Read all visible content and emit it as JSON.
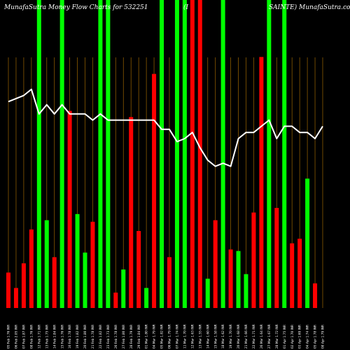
{
  "header": {
    "left": "MunafaSutra  Money Flow  Charts for 532251",
    "mid": "(I",
    "right": "SAINTE) MunafaSutra.com"
  },
  "chart_data": {
    "type": "bar",
    "ylim": [
      0,
      100
    ],
    "grid": true,
    "colors": {
      "green": "#00ff00",
      "red": "#ff0000",
      "line": "#ffffff",
      "grid": "#8b5a00",
      "background": "#000000"
    },
    "categories": [
      "05 Feb 1.76 INR",
      "06 Feb 2.05 INR",
      "07 Feb 1.87 INR",
      "08 Feb 1.76 INR",
      "12 Feb 1.71 INR",
      "13 Feb 1.75 INR",
      "14 Feb 1.84 INR",
      "15 Feb 1.76 INR",
      "16 Feb 1.78 INR",
      "19 Feb 1.82 INR",
      "20 Feb 1.80 INR",
      "21 Feb 1.78 INR",
      "22 Feb 1.82 INR",
      "23 Feb 1.73 INR",
      "26 Feb 1.78 INR",
      "27 Feb 1.80 INR",
      "28 Feb 1.79 INR",
      "29 Feb 1.84 INR",
      "01 Mar 1.80 INR",
      "04 Mar 1.79 INR",
      "05 Mar 1.82 INR",
      "06 Mar 1.79 INR",
      "07 Mar 1.74 INR",
      "11 Mar 1.70 INR",
      "12 Mar 1.63 INR",
      "13 Mar 1.55 INR",
      "14 Mar 1.60 INR",
      "15 Mar 1.58 INR",
      "18 Mar 1.62 INR",
      "19 Mar 1.70 INR",
      "20 Mar 1.68 INR",
      "21 Mar 1.66 INR",
      "22 Mar 1.71 INR",
      "26 Mar 1.64 INR",
      "27 Mar 1.67 INR",
      "28 Mar 1.72 INR",
      "01 Apr 1.75 INR",
      "02 Apr 1.70 INR",
      "03 Apr 1.69 INR",
      "04 Apr 1.74 INR",
      "05 Apr 1.78 INR",
      "08 Apr 1.79 INR"
    ],
    "bars": [
      {
        "color": "red",
        "value": 11.5
      },
      {
        "color": "red",
        "value": 6.5
      },
      {
        "color": "red",
        "value": 14.5
      },
      {
        "color": "red",
        "value": 25.5
      },
      {
        "color": "green",
        "value": 100
      },
      {
        "color": "green",
        "value": 28.5
      },
      {
        "color": "red",
        "value": 16.5
      },
      {
        "color": "green",
        "value": 100
      },
      {
        "color": "red",
        "value": 64
      },
      {
        "color": "green",
        "value": 30.5
      },
      {
        "color": "green",
        "value": 18
      },
      {
        "color": "red",
        "value": 28
      },
      {
        "color": "green",
        "value": 100
      },
      {
        "color": "green",
        "value": 100
      },
      {
        "color": "red",
        "value": 5
      },
      {
        "color": "green",
        "value": 12.5
      },
      {
        "color": "red",
        "value": 62
      },
      {
        "color": "red",
        "value": 25
      },
      {
        "color": "green",
        "value": 6.5
      },
      {
        "color": "red",
        "value": 76
      },
      {
        "color": "green",
        "value": 100
      },
      {
        "color": "red",
        "value": 16.5
      },
      {
        "color": "green",
        "value": 100
      },
      {
        "color": "green",
        "value": 100
      },
      {
        "color": "red",
        "value": 100
      },
      {
        "color": "red",
        "value": 100
      },
      {
        "color": "green",
        "value": 9.5
      },
      {
        "color": "red",
        "value": 28.5
      },
      {
        "color": "green",
        "value": 100
      },
      {
        "color": "red",
        "value": 19
      },
      {
        "color": "green",
        "value": 18.5
      },
      {
        "color": "green",
        "value": 11
      },
      {
        "color": "red",
        "value": 31
      },
      {
        "color": "red",
        "value": 81.5
      },
      {
        "color": "green",
        "value": 100
      },
      {
        "color": "red",
        "value": 32.5
      },
      {
        "color": "green",
        "value": 100
      },
      {
        "color": "red",
        "value": 21
      },
      {
        "color": "red",
        "value": 22.5
      },
      {
        "color": "green",
        "value": 42
      },
      {
        "color": "red",
        "value": 8
      },
      {
        "color": "red",
        "value": 0
      }
    ],
    "line": [
      67,
      68,
      69,
      71,
      63,
      66,
      63,
      66,
      63,
      63,
      63,
      61,
      63,
      61,
      61,
      61,
      61,
      61,
      61,
      61,
      58,
      58,
      54,
      55,
      57,
      52,
      48,
      46,
      47,
      46,
      55,
      57,
      57,
      59,
      61,
      55,
      59,
      59,
      57,
      57,
      55,
      59
    ]
  }
}
